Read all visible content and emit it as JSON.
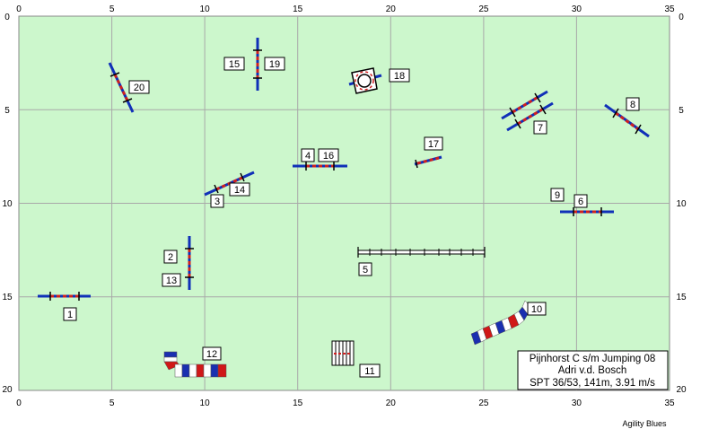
{
  "axes": {
    "x_ticks": [
      "0",
      "5",
      "10",
      "15",
      "20",
      "25",
      "30",
      "35"
    ],
    "y_ticks": [
      "0",
      "5",
      "10",
      "15",
      "20"
    ]
  },
  "course": {
    "field_color": "#ccf7cc",
    "grid_color": "#a8a8a8",
    "bar_blue": "#1030b8",
    "bar_red": "#d02020"
  },
  "obstacles": [
    {
      "labels": [
        "1"
      ]
    },
    {
      "labels": [
        "2",
        "13"
      ]
    },
    {
      "labels": [
        "3",
        "14"
      ]
    },
    {
      "labels": [
        "4",
        "16"
      ]
    },
    {
      "labels": [
        "5"
      ]
    },
    {
      "labels": [
        "9",
        "6"
      ]
    },
    {
      "labels": [
        "7"
      ]
    },
    {
      "labels": [
        "8"
      ]
    },
    {
      "labels": [
        "10"
      ]
    },
    {
      "labels": [
        "11"
      ]
    },
    {
      "labels": [
        "12"
      ]
    },
    {
      "labels": [
        "15",
        "19"
      ]
    },
    {
      "labels": [
        "17"
      ]
    },
    {
      "labels": [
        "18"
      ]
    },
    {
      "labels": [
        "20"
      ]
    }
  ],
  "info_box": {
    "line1": "Pijnhorst C s/m Jumping 08",
    "line2": "Adri v.d. Bosch",
    "line3": "SPT 36/53, 141m, 3.91 m/s"
  },
  "credit": "Agility Blues"
}
